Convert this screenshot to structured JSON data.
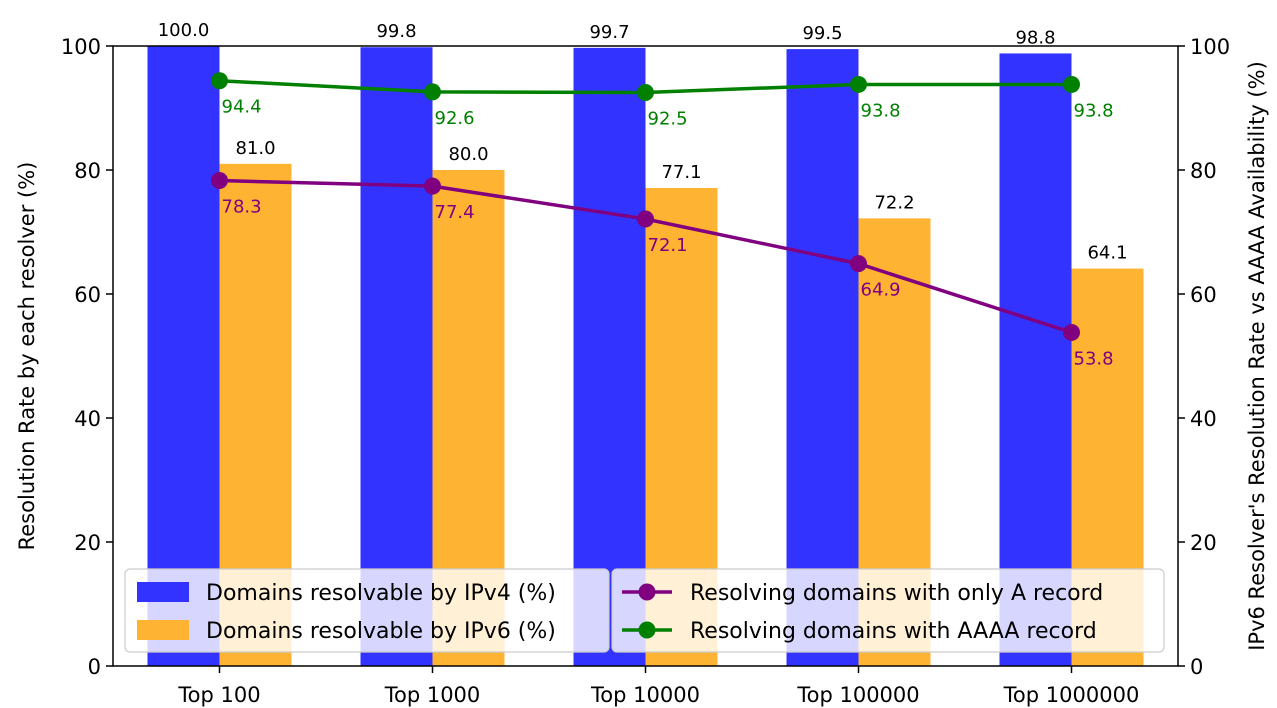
{
  "chart_data": {
    "type": "bar",
    "categories": [
      "Top 100",
      "Top 1000",
      "Top 10000",
      "Top 100000",
      "Top 1000000"
    ],
    "ylabel_left": "Resolution Rate by each resolver (%)",
    "ylabel_right": "IPv6 Resolver's Resolution Rate vs AAAA Availability (%)",
    "ylim_left": [
      0,
      100
    ],
    "ylim_right": [
      0,
      100
    ],
    "yticks_left": [
      "0",
      "20",
      "40",
      "60",
      "80",
      "100"
    ],
    "yticks_right": [
      "0",
      "20",
      "40",
      "60",
      "80",
      "100"
    ],
    "grid": false,
    "legend_placement": "lower-left",
    "bar_series": [
      {
        "name": "Domains resolvable by IPv4 (%)",
        "color": "#3333ff",
        "values": [
          100.0,
          99.8,
          99.7,
          99.5,
          98.8
        ],
        "labels": [
          "100.0",
          "99.8",
          "99.7",
          "99.5",
          "98.8"
        ]
      },
      {
        "name": "Domains resolvable by IPv6 (%)",
        "color": "#ffb333",
        "values": [
          81.0,
          80.0,
          77.1,
          72.2,
          64.1
        ],
        "labels": [
          "81.0",
          "80.0",
          "77.1",
          "72.2",
          "64.1"
        ]
      }
    ],
    "line_series": [
      {
        "name": "Resolving domains with only A record",
        "color": "#800080",
        "axis": "right",
        "values": [
          78.3,
          77.4,
          72.1,
          64.9,
          53.8
        ],
        "labels": [
          "78.3",
          "77.4",
          "72.1",
          "64.9",
          "53.8"
        ]
      },
      {
        "name": "Resolving domains with AAAA record",
        "color": "#008000",
        "axis": "right",
        "values": [
          94.4,
          92.6,
          92.5,
          93.8,
          93.8
        ],
        "labels": [
          "94.4",
          "92.6",
          "92.5",
          "93.8",
          "93.8"
        ]
      }
    ]
  }
}
